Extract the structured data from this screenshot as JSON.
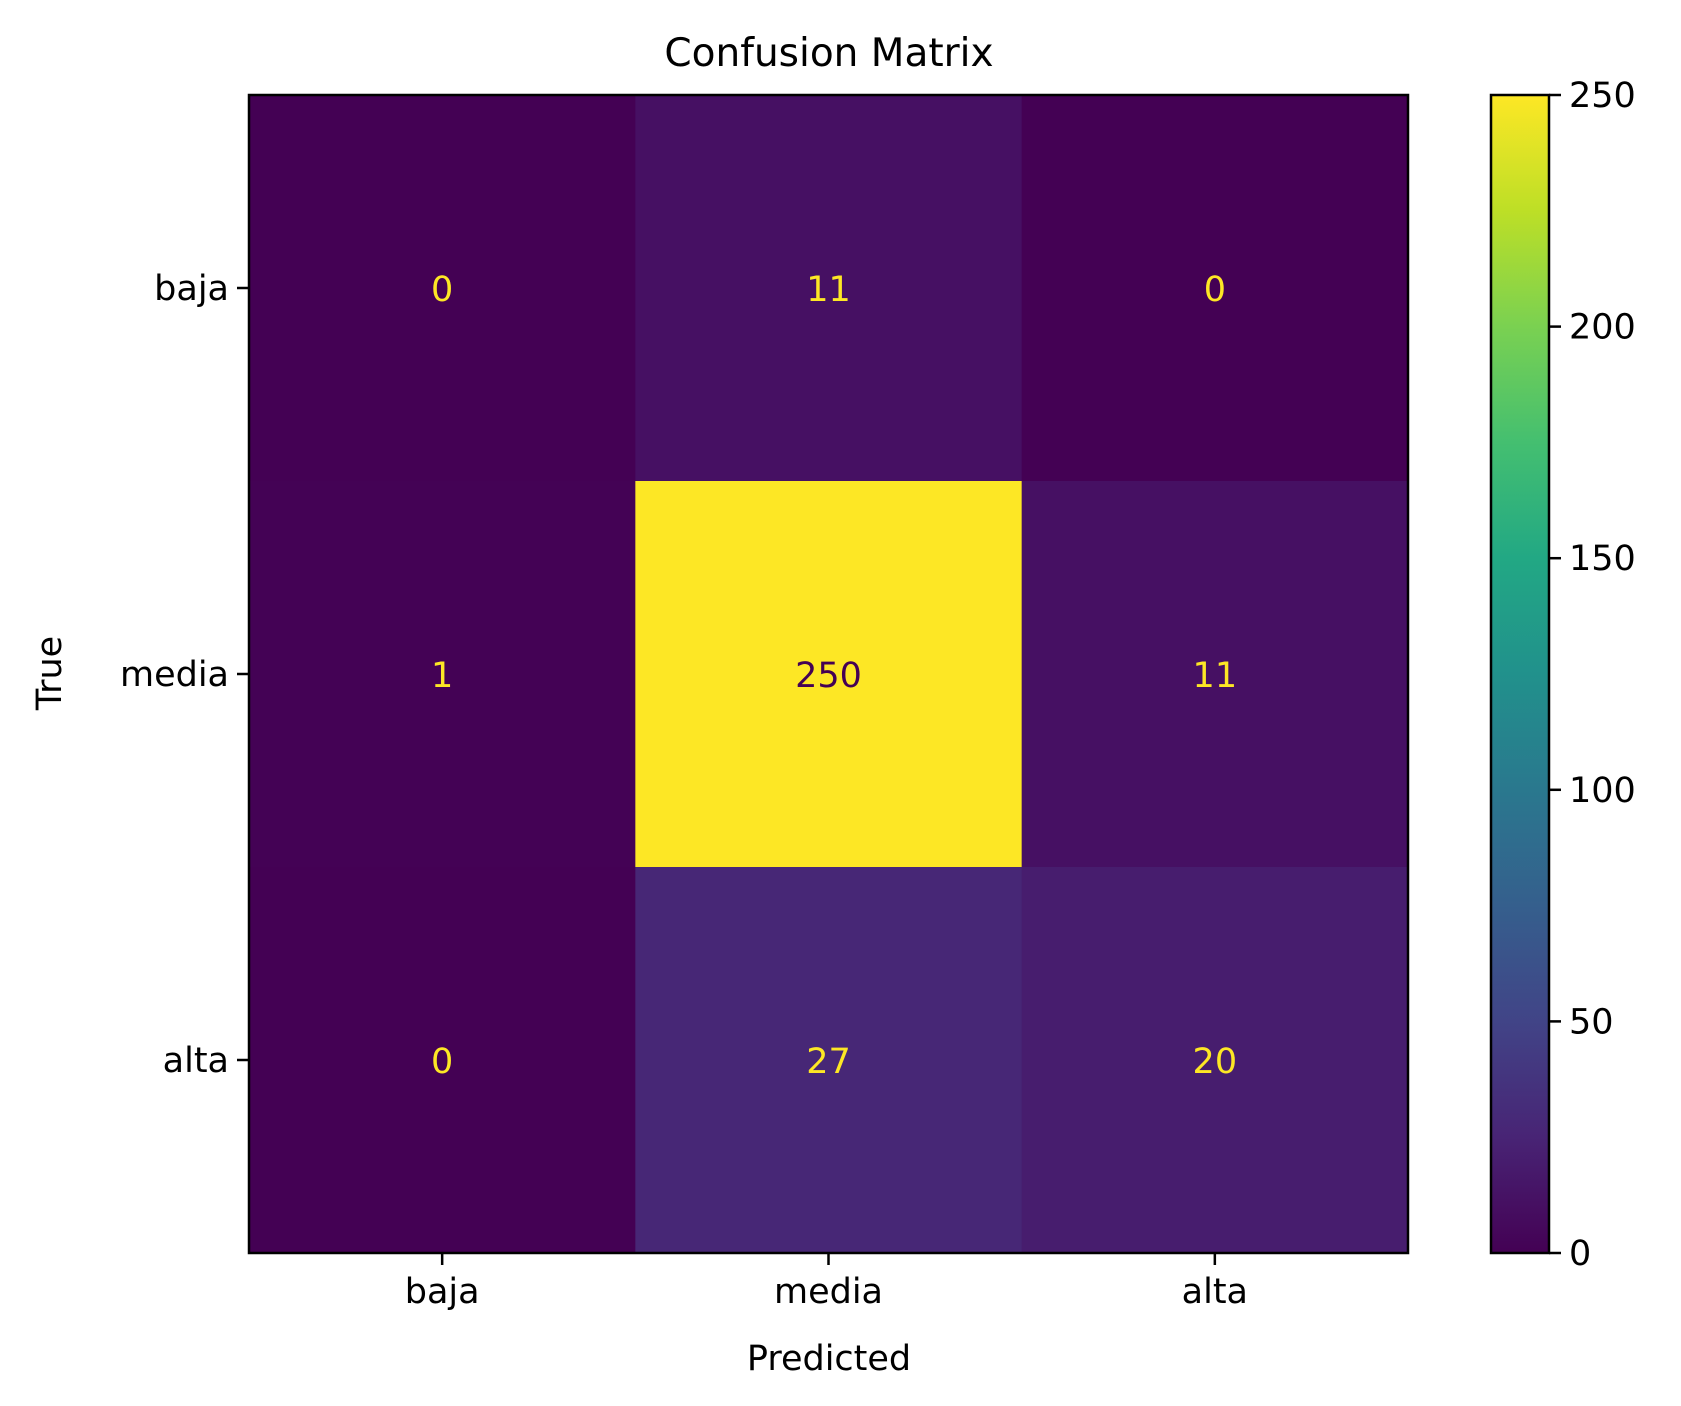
{
  "chart_data": {
    "type": "heatmap",
    "title": "Confusion Matrix",
    "xlabel": "Predicted",
    "ylabel": "True",
    "x_categories": [
      "baja",
      "media",
      "alta"
    ],
    "y_categories": [
      "baja",
      "media",
      "alta"
    ],
    "values": [
      [
        0,
        11,
        0
      ],
      [
        1,
        250,
        11
      ],
      [
        0,
        27,
        20
      ]
    ],
    "colormap": "viridis",
    "colorbar": {
      "range": [
        0,
        250
      ],
      "ticks": [
        0,
        50,
        100,
        150,
        200,
        250
      ]
    },
    "annotation_colors": {
      "on_dark": "#fde725",
      "on_light": "#440154"
    },
    "grid": false
  }
}
